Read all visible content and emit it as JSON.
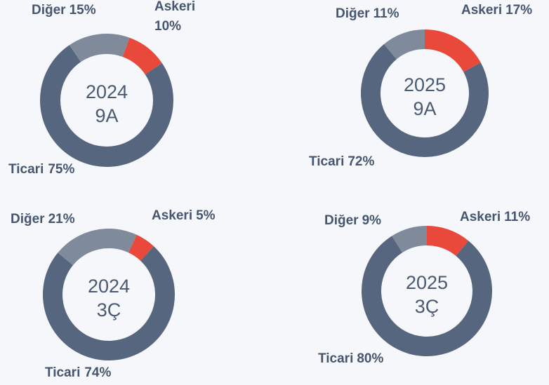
{
  "chart_data": [
    {
      "type": "pie",
      "title": "2024",
      "subtitle": "9A",
      "categories": [
        "Askeri",
        "Ticari",
        "Diğer"
      ],
      "values": [
        10,
        75,
        15
      ],
      "value_labels": [
        "10%",
        "75%",
        "15%"
      ],
      "colors": [
        "#e8493b",
        "#56667f",
        "#7f8a9b"
      ]
    },
    {
      "type": "pie",
      "title": "2025",
      "subtitle": "9A",
      "categories": [
        "Askeri",
        "Ticari",
        "Diğer"
      ],
      "values": [
        17,
        72,
        11
      ],
      "value_labels": [
        "17%",
        "72%",
        "11%"
      ],
      "colors": [
        "#e8493b",
        "#56667f",
        "#7f8a9b"
      ]
    },
    {
      "type": "pie",
      "title": "2024",
      "subtitle": "3Ç",
      "categories": [
        "Askeri",
        "Ticari",
        "Diğer"
      ],
      "values": [
        5,
        74,
        21
      ],
      "value_labels": [
        "5%",
        "74%",
        "21%"
      ],
      "colors": [
        "#e8493b",
        "#56667f",
        "#7f8a9b"
      ]
    },
    {
      "type": "pie",
      "title": "2025",
      "subtitle": "3Ç",
      "categories": [
        "Askeri",
        "Ticari",
        "Diğer"
      ],
      "values": [
        11,
        80,
        9
      ],
      "value_labels": [
        "11%",
        "80%",
        "9%"
      ],
      "colors": [
        "#e8493b",
        "#56667f",
        "#7f8a9b"
      ]
    }
  ]
}
